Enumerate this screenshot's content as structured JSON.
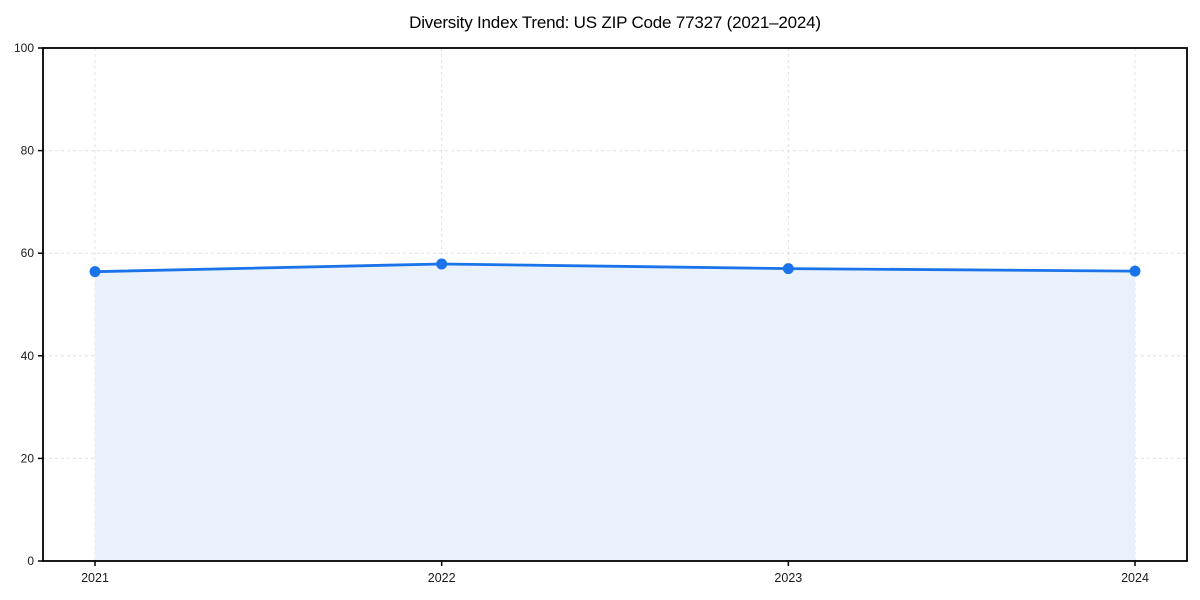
{
  "chart_data": {
    "type": "area",
    "title": "Diversity Index Trend: US ZIP Code 77327 (2021–2024)",
    "categories": [
      "2021",
      "2022",
      "2023",
      "2024"
    ],
    "series": [
      {
        "name": "Diversity Index",
        "values": [
          56.4,
          57.9,
          57.0,
          56.5
        ]
      }
    ],
    "xlabel": "",
    "ylabel": "",
    "ylim": [
      0,
      100
    ],
    "yticks": [
      0,
      20,
      40,
      60,
      80,
      100
    ],
    "grid": true,
    "grid_style": "dashed",
    "legend_position": "none",
    "area_fill": true,
    "colors": {
      "line": "#1a73e8",
      "marker": "#1a73e8",
      "area_fill": "#e8f1fc",
      "grid": "#e0e0e0",
      "axis": "#000000",
      "tick_text": "#1a1a1a",
      "title_text": "#000000",
      "background": "#ffffff"
    }
  }
}
